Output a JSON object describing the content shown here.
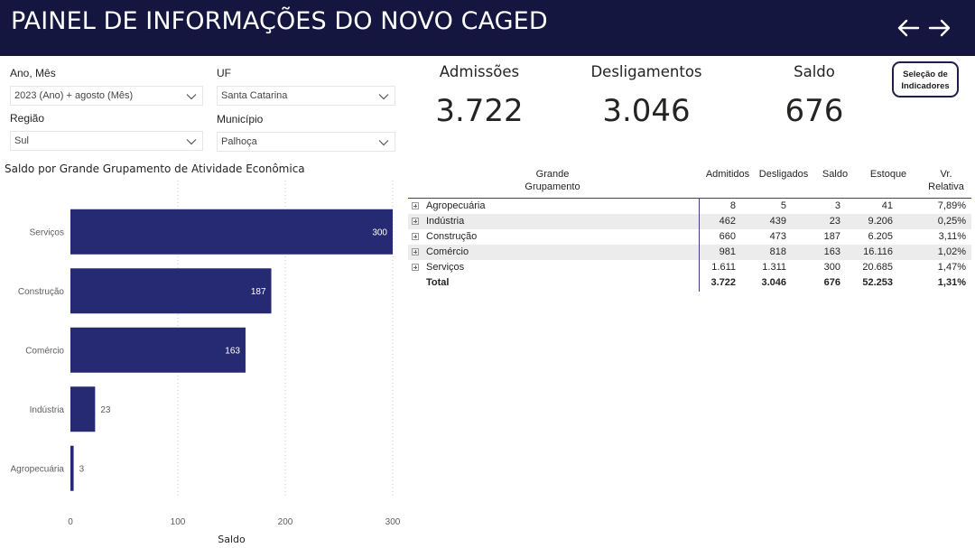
{
  "header": {
    "title": "PAINEL DE INFORMAÇÕES DO NOVO CAGED",
    "back_icon": "arrow-left-icon",
    "forward_icon": "arrow-right-icon",
    "background": "#14163f"
  },
  "filters": {
    "ano_mes": {
      "label": "Ano, Mês",
      "value": "2023 (Ano) + agosto (Mês)"
    },
    "uf": {
      "label": "UF",
      "value": "Santa Catarina"
    },
    "regiao": {
      "label": "Região",
      "value": "Sul"
    },
    "municipio": {
      "label": "Município",
      "value": "Palhoça"
    }
  },
  "kpis": {
    "admissoes": {
      "label": "Admissões",
      "value": "3.722"
    },
    "desligamentos": {
      "label": "Desligamentos",
      "value": "3.046"
    },
    "saldo": {
      "label": "Saldo",
      "value": "676"
    }
  },
  "selecao_button": {
    "line1": "Seleção de",
    "line2": "Indicadores"
  },
  "chart_data": {
    "type": "bar",
    "orientation": "horizontal",
    "title": "Saldo por Grande Grupamento de Atividade Econômica",
    "xlabel": "Saldo",
    "ylabel": "",
    "categories": [
      "Serviços",
      "Construção",
      "Comércio",
      "Indústria",
      "Agropecuária"
    ],
    "values": [
      300,
      187,
      163,
      23,
      3
    ],
    "data_labels": [
      "300",
      "187",
      "163",
      "23",
      "3"
    ],
    "xlim": [
      0,
      300
    ],
    "xticks": [
      0,
      100,
      200,
      300
    ],
    "xtick_labels": [
      "0",
      "100",
      "200",
      "300"
    ],
    "grid": "vertical dotted",
    "bar_color": "#262a72"
  },
  "table": {
    "headers": {
      "grupamento": "Grande Grupamento",
      "admitidos": "Admitidos",
      "desligados": "Desligados",
      "saldo": "Saldo",
      "estoque": "Estoque",
      "vr_line1": "Vr.",
      "vr_line2": "Relativa"
    },
    "rows": [
      {
        "name": "Agropecuária",
        "admitidos": "8",
        "desligados": "5",
        "saldo": "3",
        "estoque": "41",
        "vr": "7,89%"
      },
      {
        "name": "Indústria",
        "admitidos": "462",
        "desligados": "439",
        "saldo": "23",
        "estoque": "9.206",
        "vr": "0,25%"
      },
      {
        "name": "Construção",
        "admitidos": "660",
        "desligados": "473",
        "saldo": "187",
        "estoque": "6.205",
        "vr": "3,11%"
      },
      {
        "name": "Comércio",
        "admitidos": "981",
        "desligados": "818",
        "saldo": "163",
        "estoque": "16.116",
        "vr": "1,02%"
      },
      {
        "name": "Serviços",
        "admitidos": "1.611",
        "desligados": "1.311",
        "saldo": "300",
        "estoque": "20.685",
        "vr": "1,47%"
      }
    ],
    "total": {
      "name": "Total",
      "admitidos": "3.722",
      "desligados": "3.046",
      "saldo": "676",
      "estoque": "52.253",
      "vr": "1,31%"
    }
  }
}
